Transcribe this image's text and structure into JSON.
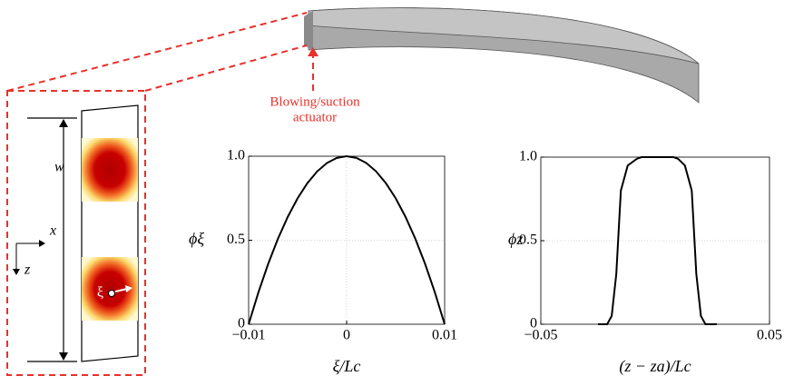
{
  "chart_data": [
    {
      "type": "line",
      "xlabel": "ξ/Lc",
      "ylabel": "ϕξ",
      "x": [
        -0.01,
        -0.009,
        -0.008,
        -0.007,
        -0.006,
        -0.005,
        -0.004,
        -0.003,
        -0.002,
        -0.001,
        0,
        0.001,
        0.002,
        0.003,
        0.004,
        0.005,
        0.006,
        0.007,
        0.008,
        0.009,
        0.01
      ],
      "series": [
        {
          "color": "#000000",
          "values": [
            0,
            0.19,
            0.36,
            0.51,
            0.64,
            0.75,
            0.84,
            0.91,
            0.96,
            0.99,
            1,
            0.99,
            0.96,
            0.91,
            0.84,
            0.75,
            0.64,
            0.51,
            0.36,
            0.19,
            0
          ]
        }
      ],
      "xlim": [
        -0.01,
        0.01
      ],
      "ylim": [
        0,
        1
      ],
      "xticks": [
        {
          "value": -0.01,
          "label": "−0.01"
        },
        0,
        0.01
      ],
      "yticks": [
        0,
        0.5,
        {
          "value": 1,
          "label": "1.0"
        }
      ],
      "grid": true
    },
    {
      "type": "line",
      "xlabel": "(z − za)/Lc",
      "ylabel": "ϕz",
      "x": [
        -0.025,
        -0.021,
        -0.019,
        -0.017,
        -0.015,
        -0.012,
        -0.008,
        -0.006,
        0.008,
        0.01,
        0.013,
        0.016,
        0.018,
        0.02,
        0.022,
        0.027
      ],
      "series": [
        {
          "color": "#000000",
          "values": [
            0,
            0,
            0.05,
            0.3,
            0.8,
            0.95,
            0.99,
            1,
            1,
            0.99,
            0.95,
            0.8,
            0.3,
            0.05,
            0,
            0
          ]
        }
      ],
      "xlim": [
        -0.05,
        0.05
      ],
      "ylim": [
        0,
        1
      ],
      "xticks": [
        {
          "value": -0.05,
          "label": "−0.05"
        },
        0.05
      ],
      "yticks": [
        0,
        0.5,
        {
          "value": 1,
          "label": "1.0"
        }
      ],
      "grid": true
    }
  ],
  "diagram": {
    "actuator_label": [
      "Blowing/suction",
      "actuator"
    ],
    "w": "w",
    "x": "x",
    "z": "z",
    "xi": "ξ"
  }
}
